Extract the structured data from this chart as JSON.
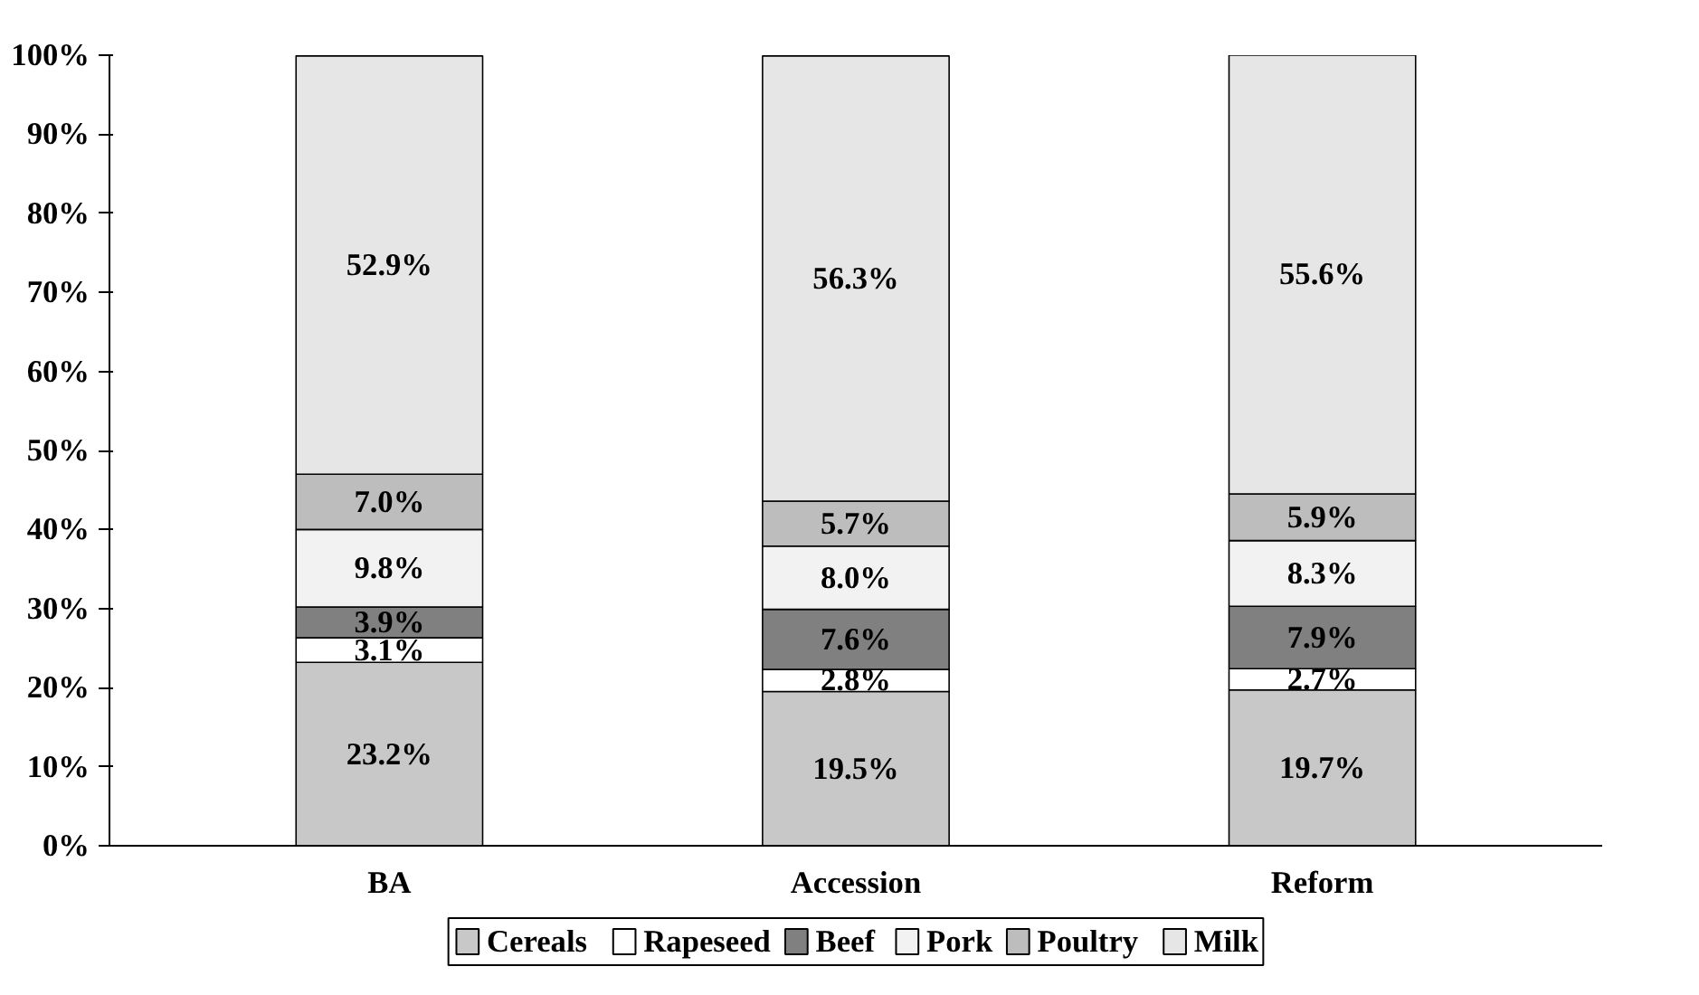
{
  "chart_data": {
    "type": "bar",
    "stacked": true,
    "categories": [
      "BA",
      "Accession",
      "Reform"
    ],
    "series": [
      {
        "name": "Cereals",
        "color": "#c8c8c8",
        "values": [
          23.2,
          19.5,
          19.7
        ],
        "value_labels": [
          "23.2%",
          "19.5%",
          "19.7%"
        ]
      },
      {
        "name": "Rapeseed",
        "color": "#ffffff",
        "values": [
          3.1,
          2.8,
          2.7
        ],
        "value_labels": [
          "3.1%",
          "2.8%",
          "2.7%"
        ]
      },
      {
        "name": "Beef",
        "color": "#808080",
        "values": [
          3.9,
          7.6,
          7.9
        ],
        "value_labels": [
          "3.9%",
          "7.6%",
          "7.9%"
        ]
      },
      {
        "name": "Pork",
        "color": "#f2f2f2",
        "values": [
          9.8,
          8.0,
          8.3
        ],
        "value_labels": [
          "9.8%",
          "8.0%",
          "8.3%"
        ]
      },
      {
        "name": "Poultry",
        "color": "#bdbdbd",
        "values": [
          7.0,
          5.7,
          5.9
        ],
        "value_labels": [
          "7.0%",
          "5.7%",
          "5.9%"
        ]
      },
      {
        "name": "Milk",
        "color": "#e6e6e6",
        "values": [
          52.9,
          56.3,
          55.6
        ],
        "value_labels": [
          "52.9%",
          "56.3%",
          "55.6%"
        ]
      }
    ],
    "ylim": [
      0,
      100
    ],
    "yticks": [
      {
        "value": 0,
        "label": "0%"
      },
      {
        "value": 10,
        "label": "10%"
      },
      {
        "value": 20,
        "label": "20%"
      },
      {
        "value": 30,
        "label": "30%"
      },
      {
        "value": 40,
        "label": "40%"
      },
      {
        "value": 50,
        "label": "50%"
      },
      {
        "value": 60,
        "label": "60%"
      },
      {
        "value": 70,
        "label": "70%"
      },
      {
        "value": 80,
        "label": "80%"
      },
      {
        "value": 90,
        "label": "90%"
      },
      {
        "value": 100,
        "label": "100%"
      }
    ],
    "grid": false,
    "legend": "bottom"
  }
}
